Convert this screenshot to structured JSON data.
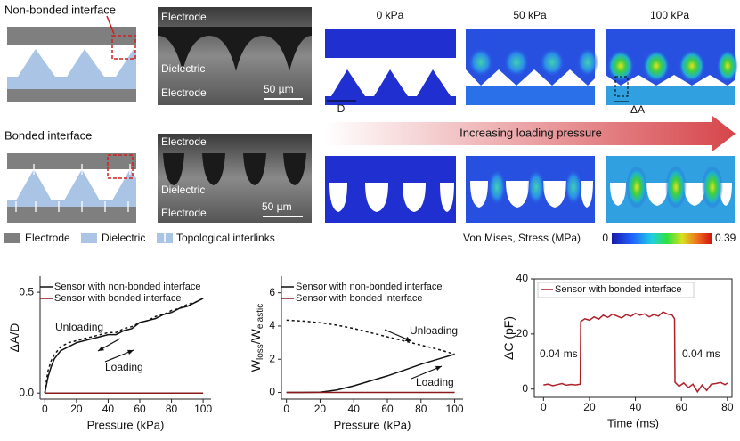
{
  "schematic": {
    "non_bonded": "Non-bonded interface",
    "bonded": "Bonded interface"
  },
  "sem_panels": [
    {
      "top": "Electrode",
      "middle": "Dielectric",
      "bottom": "Electrode",
      "scale": "50 µm"
    },
    {
      "top": "Electrode",
      "middle": "Dielectric",
      "bottom": "Electrode",
      "scale": "50 µm"
    }
  ],
  "legend": [
    "Electrode",
    "Dielectric",
    "Topological interlinks"
  ],
  "pressures": [
    "0 kPa",
    "50 kPa",
    "100 kPa"
  ],
  "dimensions": [
    "D",
    "ΔA"
  ],
  "arrow_text": "Increasing loading pressure",
  "colorbar": {
    "title": "Von Mises, Stress (MPa)",
    "min": 0,
    "max": 0.39
  },
  "chart_data": [
    {
      "type": "line",
      "xlabel": "Pressure (kPa)",
      "ylabel": [
        "ΔA/D"
      ],
      "x": [
        0,
        1,
        2,
        4,
        6,
        10,
        15,
        20,
        25,
        30,
        35,
        40,
        45,
        50,
        55,
        60,
        65,
        70,
        75,
        80,
        85,
        90,
        95,
        100
      ],
      "series": [
        {
          "name": "Sensor with non-bonded interface",
          "color": "#111111",
          "values": [
            0,
            0.04,
            0.08,
            0.13,
            0.17,
            0.21,
            0.23,
            0.25,
            0.26,
            0.27,
            0.28,
            0.29,
            0.29,
            0.31,
            0.32,
            0.35,
            0.36,
            0.37,
            0.39,
            0.4,
            0.42,
            0.43,
            0.45,
            0.47
          ]
        },
        {
          "color": "#111111",
          "dash": true,
          "values": [
            0,
            0.06,
            0.11,
            0.16,
            0.19,
            0.23,
            0.25,
            0.26,
            0.27,
            0.28,
            0.29,
            0.3,
            0.3,
            0.32,
            0.33,
            0.35,
            0.36,
            0.38,
            0.39,
            0.41,
            0.42,
            0.44,
            0.45,
            0.47
          ]
        },
        {
          "name": "Sensor with bonded interface",
          "color": "#8b1a1a",
          "values": [
            0,
            0,
            0,
            0,
            0,
            0,
            0,
            0,
            0,
            0,
            0,
            0,
            0,
            0,
            0,
            0,
            0,
            0,
            0,
            0,
            0,
            0,
            0,
            0
          ]
        }
      ],
      "annotations": [
        "Unloading",
        "Loading"
      ],
      "xlim": [
        -3,
        105
      ],
      "xticks": [
        0,
        20,
        40,
        60,
        80,
        100
      ],
      "ylim": [
        -0.03,
        0.58
      ],
      "yticks": [
        {
          "value": 0,
          "label": "0.0"
        },
        0.5
      ],
      "frame": false
    },
    {
      "type": "line",
      "xlabel": "Pressure (kPa)",
      "ylabel": [
        "W",
        "loss",
        "/W",
        "elastic"
      ],
      "x": [
        0,
        10,
        20,
        30,
        40,
        50,
        60,
        70,
        80,
        90,
        100
      ],
      "series": [
        {
          "name": "Sensor with non-bonded interface",
          "color": "#111111",
          "values": [
            0,
            0,
            0.02,
            0.15,
            0.4,
            0.7,
            1.0,
            1.35,
            1.7,
            2.0,
            2.3
          ]
        },
        {
          "color": "#111111",
          "dash": true,
          "values": [
            4.35,
            4.3,
            4.2,
            4.05,
            3.85,
            3.6,
            3.35,
            3.1,
            2.85,
            2.6,
            2.3
          ]
        },
        {
          "name": "Sensor with bonded interface",
          "color": "#8b1a1a",
          "values": [
            0,
            0,
            0,
            0,
            0,
            0,
            0,
            0,
            0,
            0,
            0
          ]
        }
      ],
      "annotations": [
        "Unloading",
        "Loading"
      ],
      "xlim": [
        -3,
        105
      ],
      "xticks": [
        0,
        20,
        40,
        60,
        80,
        100
      ],
      "ylim": [
        -0.4,
        7
      ],
      "yticks": [
        0,
        2,
        4,
        6
      ],
      "frame": false
    },
    {
      "type": "line",
      "xlabel": "Time (ms)",
      "ylabel": [
        "ΔC (pF)"
      ],
      "x": [
        0,
        2,
        4,
        6,
        8,
        10,
        12,
        14,
        16,
        16.2,
        18,
        20,
        22,
        24,
        26,
        28,
        30,
        32,
        34,
        36,
        38,
        40,
        42,
        44,
        46,
        48,
        50,
        52,
        54,
        56,
        57,
        57.2,
        59,
        61,
        63,
        65,
        67,
        69,
        71,
        73,
        75,
        77,
        79,
        80
      ],
      "series": [
        {
          "name": "Sensor with bonded interface",
          "color": "#b0202a",
          "values": [
            1.5,
            1.8,
            1.2,
            1.6,
            2.0,
            1.4,
            1.7,
            1.5,
            1.8,
            24.5,
            25.5,
            25.0,
            26.2,
            25.4,
            26.8,
            26.0,
            27.2,
            26.5,
            25.8,
            27.0,
            26.4,
            27.5,
            26.8,
            27.3,
            26.2,
            27.0,
            26.5,
            28.0,
            27.2,
            26.8,
            25.5,
            2.5,
            1.0,
            2.2,
            0.5,
            1.8,
            -1.0,
            1.5,
            -0.5,
            1.8,
            2.0,
            2.4,
            1.6,
            2.2
          ]
        }
      ],
      "annotations": [
        "0.04 ms",
        "0.04 ms"
      ],
      "xlim": [
        -4,
        82
      ],
      "xticks": [
        0,
        20,
        40,
        60,
        80
      ],
      "ylim": [
        -3,
        40
      ],
      "yticks": [
        0,
        20,
        40
      ],
      "frame": true
    }
  ]
}
